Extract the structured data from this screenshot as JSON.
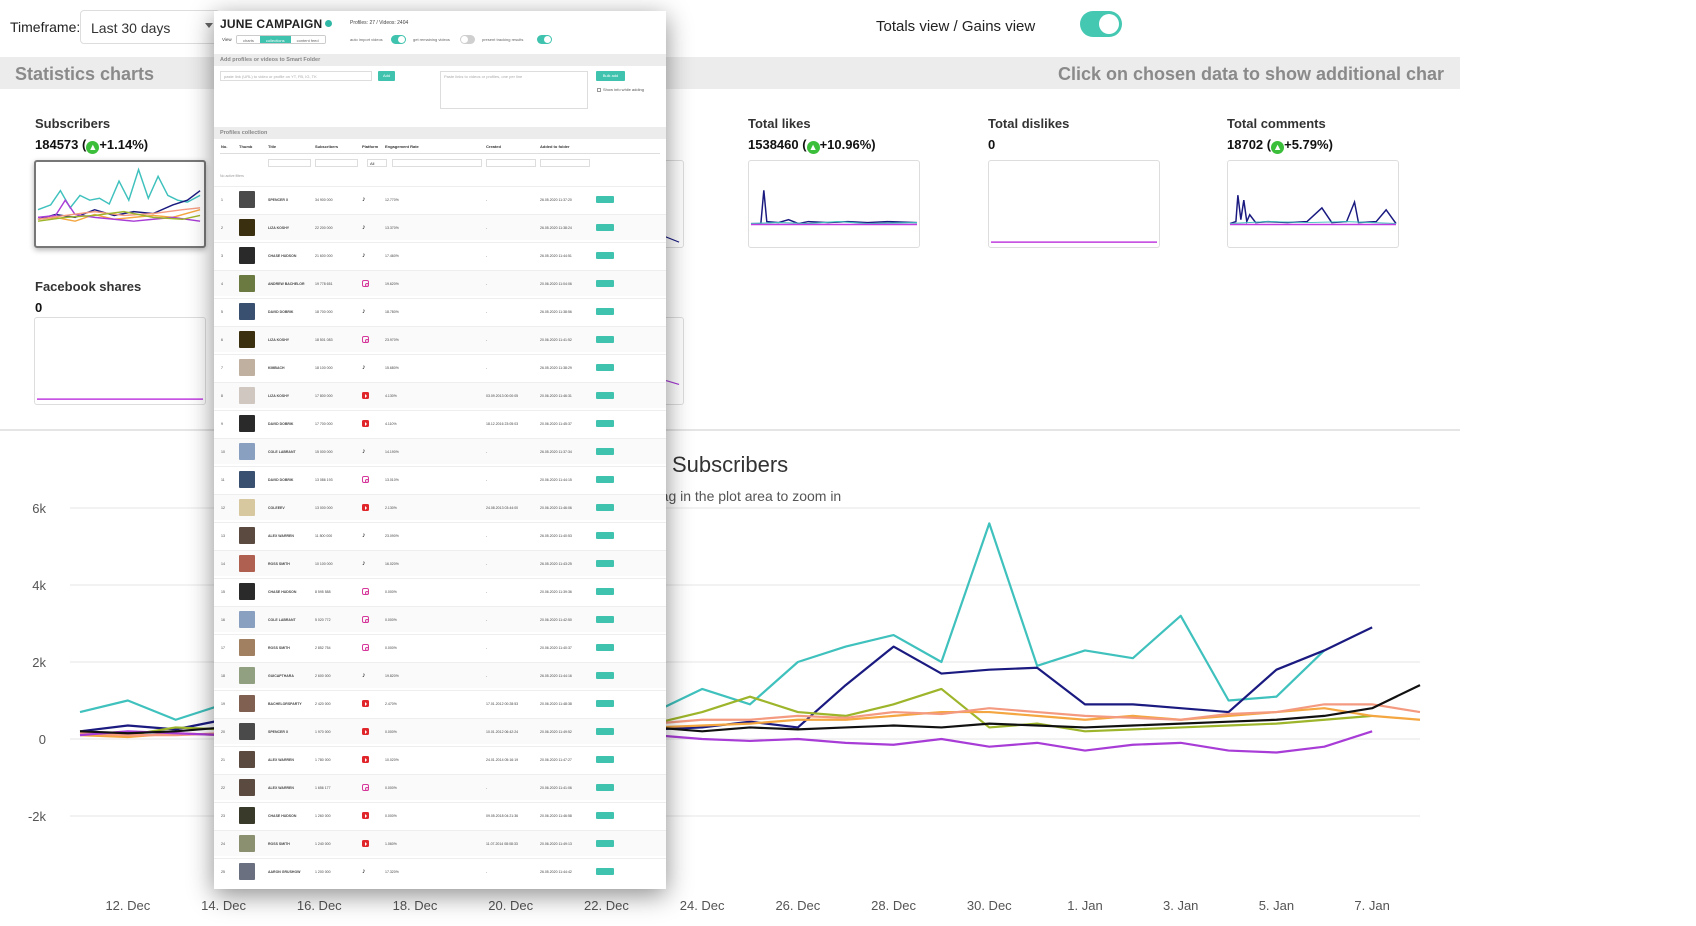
{
  "topbar": {
    "timeframe_label": "Timeframe:",
    "timeframe_value": "Last 30 days",
    "view_label": "Totals view / Gains view"
  },
  "stats": {
    "title": "Statistics charts",
    "hint": "Click on chosen data to show additional char"
  },
  "metrics": [
    {
      "label": "Subscribers",
      "value": "184573",
      "change": "+1.14%"
    },
    {
      "label": "Facebook shares",
      "value": "0",
      "change": ""
    },
    {
      "label": "Total likes",
      "value": "1538460",
      "change": "+10.96%"
    },
    {
      "label": "Total dislikes",
      "value": "0",
      "change": ""
    },
    {
      "label": "Total comments",
      "value": "18702",
      "change": "+5.79%"
    }
  ],
  "main_chart": {
    "title": "Subscribers",
    "subtitle": "rag in the plot area to zoom in"
  },
  "chart_data": {
    "type": "line",
    "title": "Subscribers",
    "x": [
      "11. Dec",
      "12. Dec",
      "13. Dec",
      "14. Dec",
      "15. Dec",
      "16. Dec",
      "17. Dec",
      "18. Dec",
      "19. Dec",
      "20. Dec",
      "21. Dec",
      "22. Dec",
      "23. Dec",
      "24. Dec",
      "25. Dec",
      "26. Dec",
      "27. Dec",
      "28. Dec",
      "29. Dec",
      "30. Dec",
      "31. Dec",
      "1. Jan",
      "2. Jan",
      "3. Jan",
      "4. Jan",
      "5. Jan",
      "6. Jan",
      "7. Jan",
      "8. Jan"
    ],
    "xticks": [
      "12. Dec",
      "14. Dec",
      "16. Dec",
      "18. Dec",
      "20. Dec",
      "22. Dec",
      "24. Dec",
      "26. Dec",
      "28. Dec",
      "30. Dec",
      "1. Jan",
      "3. Jan",
      "5. Jan",
      "7. Jan"
    ],
    "ylim": [
      -2000,
      6000
    ],
    "yticks": [
      -2000,
      0,
      2000,
      4000,
      6000
    ],
    "ytick_labels": [
      "-2k",
      "0",
      "2k",
      "4k",
      "6k"
    ],
    "grid": true,
    "series": [
      {
        "color": "#3fc1bd",
        "values": [
          700,
          1000,
          500,
          900,
          1450,
          700,
          600,
          400,
          500,
          300,
          350,
          250,
          700,
          1300,
          900,
          2000,
          2400,
          2700,
          2000,
          5600,
          1900,
          2300,
          2100,
          3200,
          1000,
          1100,
          2300,
          null,
          null
        ]
      },
      {
        "color": "#1a1a80",
        "values": [
          200,
          350,
          250,
          500,
          300,
          250,
          200,
          200,
          300,
          250,
          200,
          250,
          250,
          300,
          450,
          300,
          1400,
          2400,
          1700,
          1800,
          1850,
          900,
          900,
          800,
          700,
          1800,
          2300,
          2900,
          null
        ]
      },
      {
        "color": "#9db52a",
        "values": [
          200,
          100,
          300,
          250,
          200,
          200,
          250,
          300,
          250,
          200,
          300,
          200,
          400,
          700,
          1100,
          700,
          600,
          900,
          1300,
          300,
          400,
          200,
          250,
          300,
          350,
          400,
          500,
          600,
          null
        ]
      },
      {
        "color": "#f4a640",
        "values": [
          100,
          50,
          150,
          100,
          100,
          150,
          200,
          100,
          150,
          200,
          100,
          200,
          300,
          350,
          400,
          500,
          500,
          600,
          700,
          700,
          600,
          500,
          600,
          500,
          600,
          700,
          800,
          600,
          500
        ]
      },
      {
        "color": "#f49a80",
        "values": [
          150,
          100,
          100,
          150,
          200,
          150,
          250,
          200,
          300,
          250,
          200,
          300,
          400,
          500,
          500,
          600,
          550,
          700,
          650,
          800,
          700,
          600,
          550,
          500,
          650,
          700,
          900,
          900,
          700
        ]
      },
      {
        "color": "#a83cd6",
        "values": [
          100,
          200,
          150,
          100,
          200,
          100,
          150,
          200,
          150,
          100,
          100,
          100,
          100,
          0,
          -50,
          0,
          -100,
          -150,
          0,
          -200,
          -100,
          -300,
          -150,
          -100,
          -300,
          -350,
          -200,
          200,
          null
        ]
      },
      {
        "color": "#111111",
        "values": [
          200,
          150,
          200,
          300,
          200,
          250,
          300,
          200,
          250,
          300,
          200,
          250,
          300,
          200,
          300,
          250,
          300,
          350,
          300,
          400,
          350,
          300,
          350,
          400,
          450,
          500,
          600,
          800,
          1400
        ]
      }
    ]
  },
  "panel": {
    "title": "JUNE CAMPAIGN",
    "meta": "Profiles: 27 / Videos: 2404",
    "view_label": "View",
    "tabs": [
      "charts",
      "collections",
      "content feed"
    ],
    "options": [
      "auto import videos",
      "get remaining videos",
      "present tracking results"
    ],
    "add_section": "Add profiles or videos to Smart Folder",
    "input_placeholder": "paste link (URL) to video or profile on YT, FB, IG, TK",
    "add_button": "Add",
    "textarea_placeholder": "Paste links to videos or profiles, one per line",
    "bulk_button": "Bulk add",
    "show_info_label": "Show info while adding",
    "collection_section": "Profiles collection",
    "columns": [
      "No.",
      "Thumb",
      "Title",
      "Subscribers",
      "Platform",
      "Engagement Rate",
      "Created",
      "Added to folder"
    ],
    "filter_value": "All",
    "no_filters": "No active filters",
    "rows": [
      {
        "no": "1",
        "title": "SPENCER X",
        "subs": "34 900 000",
        "platform": "tiktok",
        "er": "12.770%",
        "created": "-",
        "added": "26.05.2020 11:37:20",
        "thumb": "#4a4a4a"
      },
      {
        "no": "2",
        "title": "LIZA KOSHY",
        "subs": "22 200 000",
        "platform": "tiktok",
        "er": "13.370%",
        "created": "-",
        "added": "26.05.2020 11:38:24",
        "thumb": "#3a3010"
      },
      {
        "no": "3",
        "title": "CHASE HUDSON",
        "subs": "21 600 000",
        "platform": "tiktok",
        "er": "17.460%",
        "created": "-",
        "added": "26.05.2020 11:44:51",
        "thumb": "#2a2a2a"
      },
      {
        "no": "4",
        "title": "ANDREW BACHELOR",
        "subs": "19 778 651",
        "platform": "instagram",
        "er": "19.620%",
        "created": "-",
        "added": "20.06.2020 11:04:06",
        "thumb": "#6a7a40"
      },
      {
        "no": "5",
        "title": "DAVID DOBRIK",
        "subs": "18 700 000",
        "platform": "tiktok",
        "er": "18.780%",
        "created": "-",
        "added": "26.05.2020 11:38:56",
        "thumb": "#3a5070"
      },
      {
        "no": "6",
        "title": "LIZA KOSHY",
        "subs": "18 501 083",
        "platform": "instagram",
        "er": "23.970%",
        "created": "-",
        "added": "20.06.2020 11:41:52",
        "thumb": "#3a3010"
      },
      {
        "no": "7",
        "title": "KIMBACH",
        "subs": "18 100 000",
        "platform": "tiktok",
        "er": "15.680%",
        "created": "-",
        "added": "26.05.2020 11:38:29",
        "thumb": "#c0b0a0"
      },
      {
        "no": "8",
        "title": "LIZA KOSHY",
        "subs": "17 800 000",
        "platform": "youtube",
        "er": "4.130%",
        "created": "03.09.2013 00:00:05",
        "added": "20.06.2020 11:46:31",
        "thumb": "#d0c8c0"
      },
      {
        "no": "9",
        "title": "DAVID DOBRIK",
        "subs": "17 700 000",
        "platform": "youtube",
        "er": "4.110%",
        "created": "18.12.2016 23:05:03",
        "added": "20.06.2020 11:45:37",
        "thumb": "#2a2a2a"
      },
      {
        "no": "10",
        "title": "COLE LABRANT",
        "subs": "15 000 000",
        "platform": "tiktok",
        "er": "14.190%",
        "created": "-",
        "added": "26.05.2020 11:37:34",
        "thumb": "#8aa0c0"
      },
      {
        "no": "11",
        "title": "DAVID DOBRIK",
        "subs": "13 086 193",
        "platform": "instagram",
        "er": "13.010%",
        "created": "-",
        "added": "20.06.2020 11:44:15",
        "thumb": "#3a5070"
      },
      {
        "no": "12",
        "title": "COLEEEV",
        "subs": "13 000 000",
        "platform": "youtube",
        "er": "2.130%",
        "created": "24.08.2013 03:44:00",
        "added": "20.06.2020 11:46:06",
        "thumb": "#d8c8a0"
      },
      {
        "no": "13",
        "title": "ALEX WARREN",
        "subs": "11 800 000",
        "platform": "tiktok",
        "er": "23.090%",
        "created": "-",
        "added": "26.05.2020 11:40:53",
        "thumb": "#5a4a40"
      },
      {
        "no": "14",
        "title": "ROSS SMITH",
        "subs": "10 100 000",
        "platform": "tiktok",
        "er": "16.020%",
        "created": "-",
        "added": "26.05.2020 11:43:25",
        "thumb": "#b06050"
      },
      {
        "no": "15",
        "title": "CHASE HUDSON",
        "subs": "8 595 588",
        "platform": "instagram",
        "er": "0.000%",
        "created": "-",
        "added": "20.06.2020 11:39:36",
        "thumb": "#2a2a2a"
      },
      {
        "no": "16",
        "title": "COLE LABRANT",
        "subs": "5 020 772",
        "platform": "instagram",
        "er": "0.000%",
        "created": "-",
        "added": "20.06.2020 11:42:50",
        "thumb": "#8aa0c0"
      },
      {
        "no": "17",
        "title": "ROSS SMITH",
        "subs": "2 852 754",
        "platform": "instagram",
        "er": "0.000%",
        "created": "-",
        "added": "20.06.2020 11:40:37",
        "thumb": "#a08060"
      },
      {
        "no": "18",
        "title": "GUICAPTHARA",
        "subs": "2 600 000",
        "platform": "tiktok",
        "er": "19.820%",
        "created": "-",
        "added": "26.05.2020 11:44:16",
        "thumb": "#90a080"
      },
      {
        "no": "19",
        "title": "BACHELORSPARTY",
        "subs": "2 420 000",
        "platform": "youtube",
        "er": "2.470%",
        "created": "17.01.2012 00:28:53",
        "added": "20.06.2020 11:48:38",
        "thumb": "#806050"
      },
      {
        "no": "20",
        "title": "SPENCER X",
        "subs": "1 970 000",
        "platform": "youtube",
        "er": "0.000%",
        "created": "10.01.2012 06:42:24",
        "added": "20.06.2020 11:49:52",
        "thumb": "#4a4a4a"
      },
      {
        "no": "21",
        "title": "ALEX WARREN",
        "subs": "1 780 000",
        "platform": "youtube",
        "er": "10.020%",
        "created": "24.01.2014 05:16:19",
        "added": "20.06.2020 11:47:27",
        "thumb": "#5a4a40"
      },
      {
        "no": "22",
        "title": "ALEX WARREN",
        "subs": "1 656 177",
        "platform": "instagram",
        "er": "0.000%",
        "created": "-",
        "added": "20.06.2020 11:41:06",
        "thumb": "#5a4a40"
      },
      {
        "no": "23",
        "title": "CHASE HUDSON",
        "subs": "1 260 000",
        "platform": "youtube",
        "er": "0.000%",
        "created": "09.05.2018 04:21:36",
        "added": "20.06.2020 11:46:58",
        "thumb": "#3a3a2a"
      },
      {
        "no": "24",
        "title": "ROSS SMITH",
        "subs": "1 240 000",
        "platform": "youtube",
        "er": "1.060%",
        "created": "11.07.2014 08:08:33",
        "added": "20.06.2020 11:49:13",
        "thumb": "#8a9070"
      },
      {
        "no": "25",
        "title": "AARON GRUSHOW",
        "subs": "1 200 000",
        "platform": "tiktok",
        "er": "17.320%",
        "created": "-",
        "added": "26.05.2020 11:44:42",
        "thumb": "#6a7080"
      }
    ]
  }
}
